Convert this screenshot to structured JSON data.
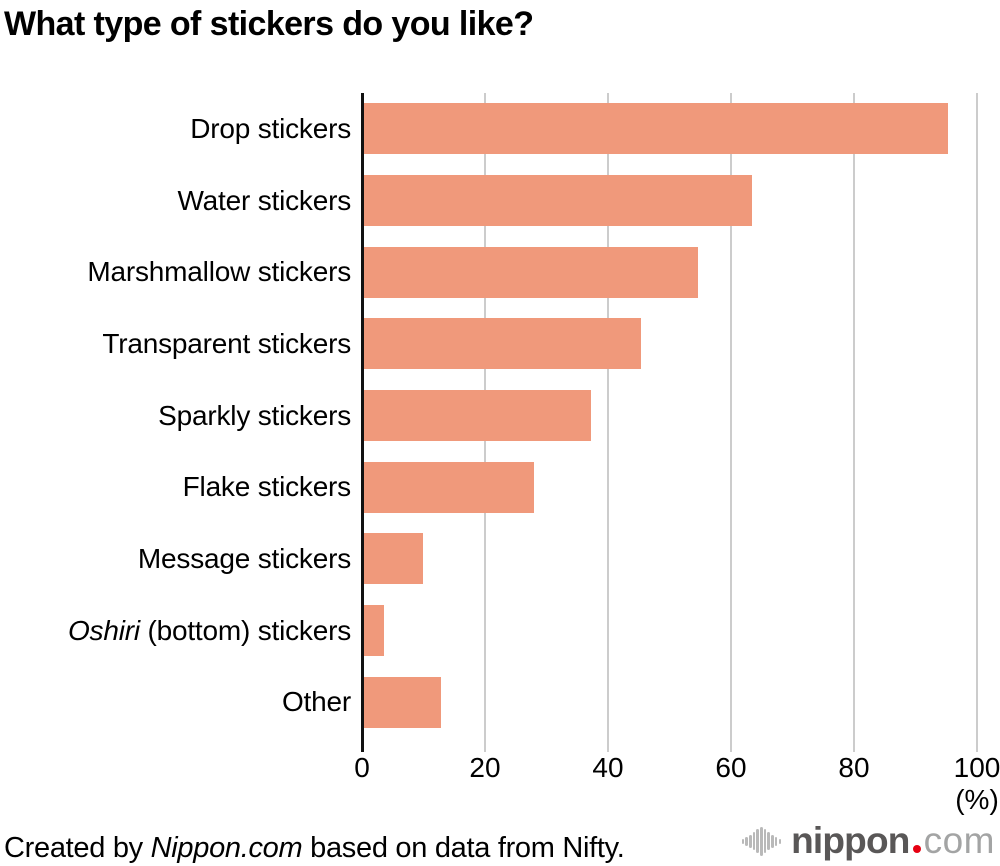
{
  "chart_data": {
    "type": "bar",
    "orientation": "horizontal",
    "title": "What type of stickers do you like?",
    "categories": [
      "Drop stickers",
      "Water stickers",
      "Marshmallow stickers",
      "Transparent stickers",
      "Sparkly stickers",
      "Flake stickers",
      "Message stickers",
      "Oshiri (bottom) stickers",
      "Other"
    ],
    "values": [
      95.3,
      63.4,
      54.7,
      45.4,
      37.2,
      28.0,
      9.9,
      3.6,
      12.9
    ],
    "italic_label_prefixes": {
      "7": "Oshiri"
    },
    "xlabel": "(%)",
    "ylabel": "",
    "x_axis": {
      "ticks": [
        0,
        20,
        40,
        60,
        80,
        100
      ],
      "range": [
        0,
        100
      ],
      "unit_label": "(%)"
    },
    "grid": true,
    "legend": false,
    "bar_color": "#f0997b",
    "gridline_color": "#cccccc",
    "axis_color": "#111111"
  },
  "footer": {
    "credit_prefix": "Created by ",
    "credit_italic": "Nippon.com",
    "credit_suffix": " based on data from Nifty."
  },
  "logo": {
    "brand_bold": "nippon",
    "brand_light": "com",
    "dot_color": "#e60012",
    "soundwave_icon": "soundwave-icon"
  }
}
